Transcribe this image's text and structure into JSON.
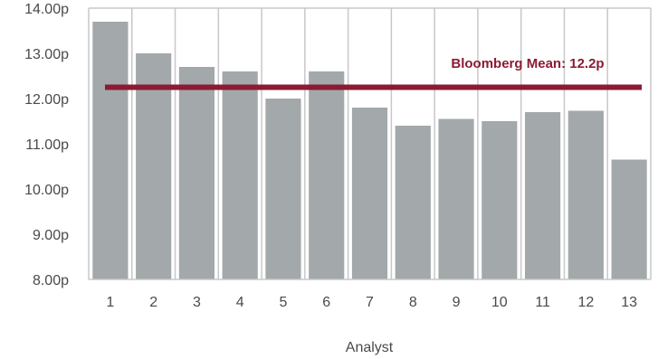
{
  "chart_data": {
    "type": "bar",
    "xlabel": "Analyst",
    "ylabel": "",
    "categories": [
      "1",
      "2",
      "3",
      "4",
      "5",
      "6",
      "7",
      "8",
      "9",
      "10",
      "11",
      "12",
      "13"
    ],
    "values": [
      13.7,
      13.0,
      12.7,
      12.6,
      12.0,
      12.6,
      11.8,
      11.4,
      11.55,
      11.5,
      11.7,
      11.73,
      10.65
    ],
    "ylim": [
      8.0,
      14.0
    ],
    "yticks": [
      "8.00p",
      "9.00p",
      "10.00p",
      "11.00p",
      "12.00p",
      "13.00p",
      "14.00p"
    ],
    "ytick_values": [
      8,
      9,
      10,
      11,
      12,
      13,
      14
    ],
    "reference_line": {
      "label": "Bloomberg Mean: 12.2p",
      "value": 12.25
    },
    "grid": "vertical",
    "colors": {
      "bar": "#a3a8aa",
      "mean_line": "#8b1a33",
      "grid": "#c8c8c8"
    }
  }
}
